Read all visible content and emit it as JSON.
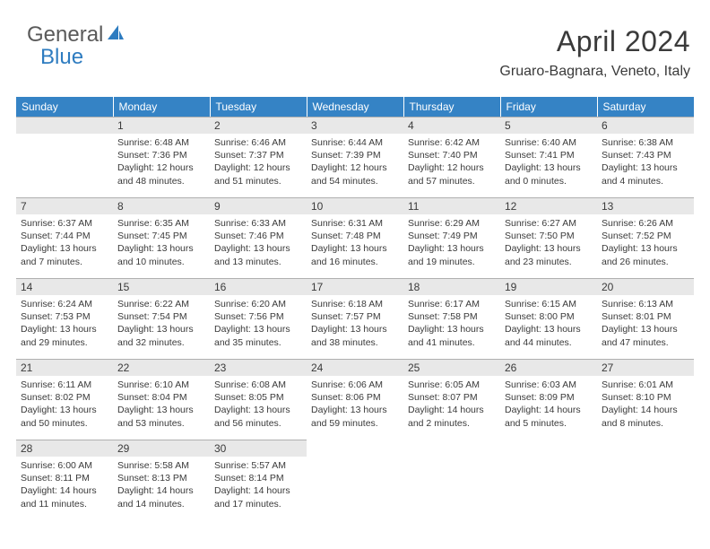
{
  "logo": {
    "part1": "General",
    "part2": "Blue"
  },
  "header": {
    "month_title": "April 2024",
    "location": "Gruaro-Bagnara, Veneto, Italy"
  },
  "colors": {
    "header_bg": "#3583c5",
    "daynum_bg": "#e8e8e8",
    "daynum_border": "#b0b0b0",
    "logo_blue": "#2e7cc0",
    "text": "#3a3a3a"
  },
  "weekdays": [
    "Sunday",
    "Monday",
    "Tuesday",
    "Wednesday",
    "Thursday",
    "Friday",
    "Saturday"
  ],
  "weeks": [
    [
      null,
      {
        "n": "1",
        "sr": "6:48 AM",
        "ss": "7:36 PM",
        "dh": 12,
        "dm": 48
      },
      {
        "n": "2",
        "sr": "6:46 AM",
        "ss": "7:37 PM",
        "dh": 12,
        "dm": 51
      },
      {
        "n": "3",
        "sr": "6:44 AM",
        "ss": "7:39 PM",
        "dh": 12,
        "dm": 54
      },
      {
        "n": "4",
        "sr": "6:42 AM",
        "ss": "7:40 PM",
        "dh": 12,
        "dm": 57
      },
      {
        "n": "5",
        "sr": "6:40 AM",
        "ss": "7:41 PM",
        "dh": 13,
        "dm": 0
      },
      {
        "n": "6",
        "sr": "6:38 AM",
        "ss": "7:43 PM",
        "dh": 13,
        "dm": 4
      }
    ],
    [
      {
        "n": "7",
        "sr": "6:37 AM",
        "ss": "7:44 PM",
        "dh": 13,
        "dm": 7
      },
      {
        "n": "8",
        "sr": "6:35 AM",
        "ss": "7:45 PM",
        "dh": 13,
        "dm": 10
      },
      {
        "n": "9",
        "sr": "6:33 AM",
        "ss": "7:46 PM",
        "dh": 13,
        "dm": 13
      },
      {
        "n": "10",
        "sr": "6:31 AM",
        "ss": "7:48 PM",
        "dh": 13,
        "dm": 16
      },
      {
        "n": "11",
        "sr": "6:29 AM",
        "ss": "7:49 PM",
        "dh": 13,
        "dm": 19
      },
      {
        "n": "12",
        "sr": "6:27 AM",
        "ss": "7:50 PM",
        "dh": 13,
        "dm": 23
      },
      {
        "n": "13",
        "sr": "6:26 AM",
        "ss": "7:52 PM",
        "dh": 13,
        "dm": 26
      }
    ],
    [
      {
        "n": "14",
        "sr": "6:24 AM",
        "ss": "7:53 PM",
        "dh": 13,
        "dm": 29
      },
      {
        "n": "15",
        "sr": "6:22 AM",
        "ss": "7:54 PM",
        "dh": 13,
        "dm": 32
      },
      {
        "n": "16",
        "sr": "6:20 AM",
        "ss": "7:56 PM",
        "dh": 13,
        "dm": 35
      },
      {
        "n": "17",
        "sr": "6:18 AM",
        "ss": "7:57 PM",
        "dh": 13,
        "dm": 38
      },
      {
        "n": "18",
        "sr": "6:17 AM",
        "ss": "7:58 PM",
        "dh": 13,
        "dm": 41
      },
      {
        "n": "19",
        "sr": "6:15 AM",
        "ss": "8:00 PM",
        "dh": 13,
        "dm": 44
      },
      {
        "n": "20",
        "sr": "6:13 AM",
        "ss": "8:01 PM",
        "dh": 13,
        "dm": 47
      }
    ],
    [
      {
        "n": "21",
        "sr": "6:11 AM",
        "ss": "8:02 PM",
        "dh": 13,
        "dm": 50
      },
      {
        "n": "22",
        "sr": "6:10 AM",
        "ss": "8:04 PM",
        "dh": 13,
        "dm": 53
      },
      {
        "n": "23",
        "sr": "6:08 AM",
        "ss": "8:05 PM",
        "dh": 13,
        "dm": 56
      },
      {
        "n": "24",
        "sr": "6:06 AM",
        "ss": "8:06 PM",
        "dh": 13,
        "dm": 59
      },
      {
        "n": "25",
        "sr": "6:05 AM",
        "ss": "8:07 PM",
        "dh": 14,
        "dm": 2
      },
      {
        "n": "26",
        "sr": "6:03 AM",
        "ss": "8:09 PM",
        "dh": 14,
        "dm": 5
      },
      {
        "n": "27",
        "sr": "6:01 AM",
        "ss": "8:10 PM",
        "dh": 14,
        "dm": 8
      }
    ],
    [
      {
        "n": "28",
        "sr": "6:00 AM",
        "ss": "8:11 PM",
        "dh": 14,
        "dm": 11
      },
      {
        "n": "29",
        "sr": "5:58 AM",
        "ss": "8:13 PM",
        "dh": 14,
        "dm": 14
      },
      {
        "n": "30",
        "sr": "5:57 AM",
        "ss": "8:14 PM",
        "dh": 14,
        "dm": 17
      },
      "blank",
      "blank",
      "blank",
      "blank"
    ]
  ]
}
